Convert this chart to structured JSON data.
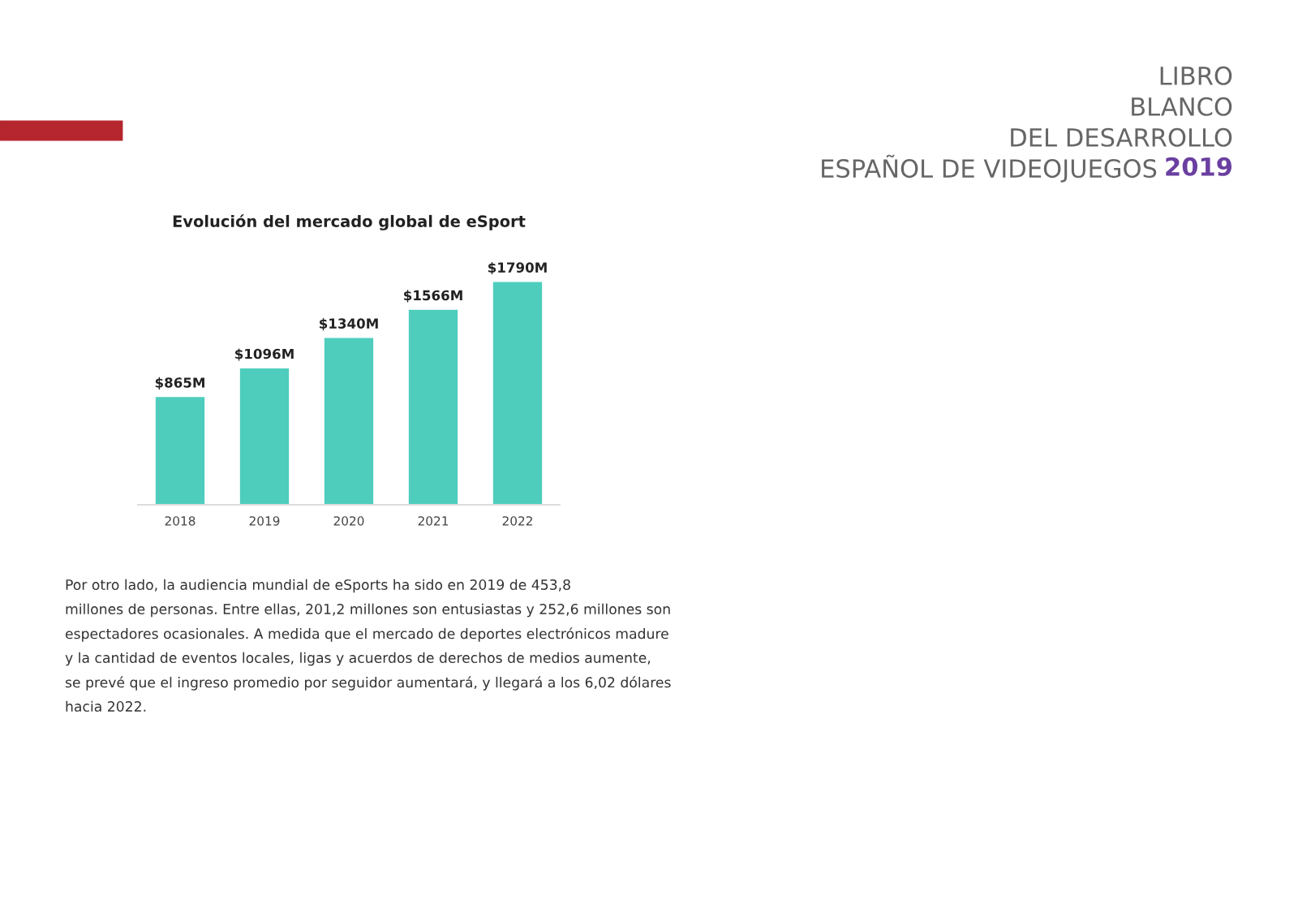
{
  "chart_data": {
    "type": "bar",
    "title": "Evolución del mercado global de eSport",
    "categories": [
      "2018",
      "2019",
      "2020",
      "2021",
      "2022"
    ],
    "values": [
      865,
      1096,
      1340,
      1566,
      1790
    ],
    "value_labels": [
      "$865M",
      "$1096M",
      "$1340M",
      "$1566M",
      "$1790M"
    ],
    "color": "#4ecdbd",
    "grid": false,
    "legend": false,
    "annotations": [
      "LIBRO",
      "BLANCO",
      "DEL DESARROLLO",
      "ESPAÑOL DE VIDEOJUEGOS",
      "2019",
      "Por otro lado, la audiencia mundial de eSports ha sido en 2019 de 453,8",
      "millones de personas. Entre ellas, 201,2 millones son entusiastas y 252,6 millones son",
      "espectadores ocasionales. A medida que el mercado de deportes electrónicos madure",
      "y la cantidad de eventos locales, ligas y acuerdos de derechos de medios aumente,",
      "se prevé que el ingreso promedio por seguidor aumentará, y llegará a los 6,02 dólares",
      "hacia 2022."
    ]
  }
}
